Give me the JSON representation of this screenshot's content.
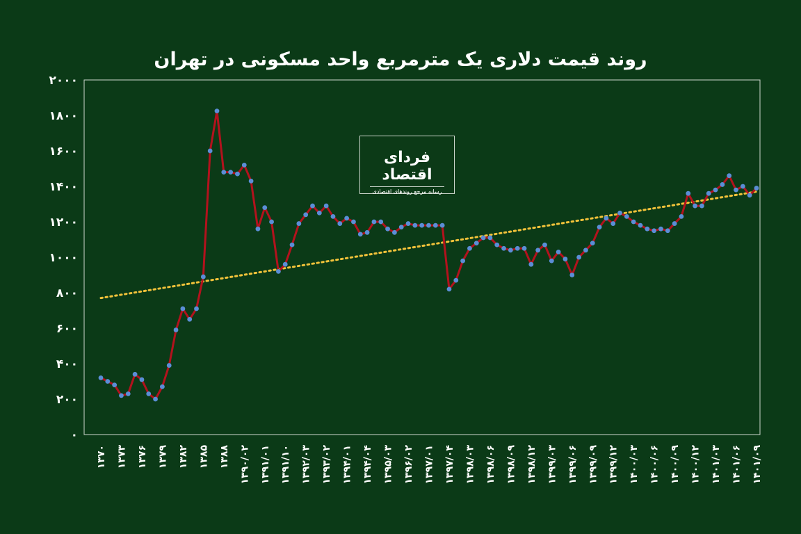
{
  "chart_data": {
    "type": "line",
    "title": "روند قیمت دلاری یک مترمربع واحد مسکونی در تهران",
    "xlabel": "",
    "ylabel": "",
    "ylim": [
      0,
      2000
    ],
    "y_ticks": [
      0,
      200,
      400,
      600,
      800,
      1000,
      1200,
      1400,
      1600,
      1800,
      2000
    ],
    "y_tick_labels": [
      "۰",
      "۲۰۰",
      "۴۰۰",
      "۶۰۰",
      "۸۰۰",
      "۱۰۰۰",
      "۱۲۰۰",
      "۱۴۰۰",
      "۱۶۰۰",
      "۱۸۰۰",
      "۲۰۰۰"
    ],
    "x_tick_labels": [
      {
        "i": 0,
        "label": "۱۳۷۰"
      },
      {
        "i": 3,
        "label": "۱۳۷۳"
      },
      {
        "i": 6,
        "label": "۱۳۷۶"
      },
      {
        "i": 9,
        "label": "۱۳۷۹"
      },
      {
        "i": 12,
        "label": "۱۳۸۲"
      },
      {
        "i": 15,
        "label": "۱۳۸۵"
      },
      {
        "i": 18,
        "label": "۱۳۸۸"
      },
      {
        "i": 21,
        "label": "۱۳۹۰/۰۲"
      },
      {
        "i": 24,
        "label": "۱۳۹۱/۰۱"
      },
      {
        "i": 27,
        "label": "۱۳۹۱/۱۰"
      },
      {
        "i": 30,
        "label": "۱۳۹۲/۰۳"
      },
      {
        "i": 33,
        "label": "۱۳۹۳/۰۲"
      },
      {
        "i": 36,
        "label": "۱۳۹۴/۰۱"
      },
      {
        "i": 39,
        "label": "۱۳۹۴/۰۴"
      },
      {
        "i": 42,
        "label": "۱۳۹۵/۰۳"
      },
      {
        "i": 45,
        "label": "۱۳۹۶/۰۲"
      },
      {
        "i": 48,
        "label": "۱۳۹۷/۰۱"
      },
      {
        "i": 51,
        "label": "۱۳۹۷/۰۴"
      },
      {
        "i": 54,
        "label": "۱۳۹۸/۰۳"
      },
      {
        "i": 57,
        "label": "۱۳۹۸/۰۶"
      },
      {
        "i": 60,
        "label": "۱۳۹۸/۰۹"
      },
      {
        "i": 63,
        "label": "۱۳۹۸/۱۲"
      },
      {
        "i": 66,
        "label": "۱۳۹۹/۰۳"
      },
      {
        "i": 69,
        "label": "۱۳۹۹/۰۶"
      },
      {
        "i": 72,
        "label": "۱۳۹۹/۰۹"
      },
      {
        "i": 75,
        "label": "۱۳۹۹/۱۲"
      },
      {
        "i": 78,
        "label": "۱۴۰۰/۰۳"
      },
      {
        "i": 81,
        "label": "۱۴۰۰/۰۶"
      },
      {
        "i": 84,
        "label": "۱۴۰۰/۰۹"
      },
      {
        "i": 87,
        "label": "۱۴۰۰/۱۲"
      },
      {
        "i": 90,
        "label": "۱۴۰۱/۰۳"
      },
      {
        "i": 93,
        "label": "۱۴۰۱/۰۶"
      },
      {
        "i": 96,
        "label": "۱۴۰۱/۰۹"
      }
    ],
    "series": [
      {
        "values": [
          320,
          300,
          280,
          220,
          230,
          340,
          310,
          230,
          200,
          270,
          390,
          590,
          710,
          650,
          710,
          890,
          1600,
          1825,
          1480,
          1480,
          1470,
          1520,
          1430,
          1160,
          1280,
          1200,
          920,
          960,
          1070,
          1190,
          1240,
          1290,
          1250,
          1290,
          1230,
          1190,
          1220,
          1200,
          1130,
          1140,
          1200,
          1200,
          1160,
          1140,
          1170,
          1190,
          1180,
          1180,
          1180,
          1180,
          1180,
          820,
          870,
          980,
          1050,
          1080,
          1110,
          1110,
          1070,
          1050,
          1040,
          1050,
          1050,
          960,
          1040,
          1070,
          980,
          1030,
          990,
          900,
          1000,
          1040,
          1080,
          1170,
          1220,
          1190,
          1250,
          1230,
          1200,
          1180,
          1160,
          1150,
          1160,
          1150,
          1190,
          1230,
          1360,
          1290,
          1290,
          1360,
          1380,
          1410,
          1460,
          1380,
          1400,
          1350,
          1390
        ]
      }
    ],
    "trendline": {
      "start": 770,
      "end": 1370
    },
    "colors": {
      "background": "#0b3a17",
      "line": "#b3121d",
      "marker": "#5b8ed6",
      "trend": "#f2c23a",
      "frame": "#cfd8cf"
    }
  },
  "logo": {
    "text": "فردای اقتصاد",
    "sub": "رسانه مرجع روندهای اقتصادی"
  }
}
